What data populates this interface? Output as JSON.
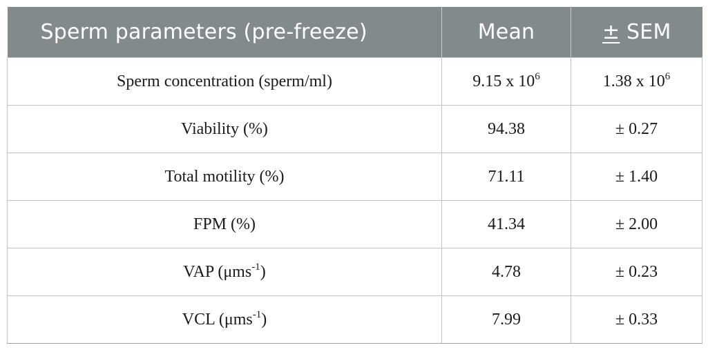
{
  "table": {
    "headers": [
      {
        "text": "Sperm parameters (pre-freeze)"
      },
      {
        "text": "Mean"
      },
      {
        "prefix": "±",
        "text": " SEM"
      }
    ],
    "rows": [
      {
        "param": {
          "text": "Sperm concentration (sperm/ml)",
          "sup": "",
          "suffix": ""
        },
        "mean": {
          "text": "9.15 x 10",
          "sup": "6"
        },
        "sem": {
          "text": "1.38 x 10",
          "sup": "6"
        }
      },
      {
        "param": {
          "text": "Viability (%)",
          "sup": "",
          "suffix": ""
        },
        "mean": {
          "text": "94.38",
          "sup": ""
        },
        "sem": {
          "text": "± 0.27",
          "sup": ""
        }
      },
      {
        "param": {
          "text": "Total motility (%)",
          "sup": "",
          "suffix": ""
        },
        "mean": {
          "text": "71.11",
          "sup": ""
        },
        "sem": {
          "text": "± 1.40",
          "sup": ""
        }
      },
      {
        "param": {
          "text": "FPM (%)",
          "sup": "",
          "suffix": ""
        },
        "mean": {
          "text": "41.34",
          "sup": ""
        },
        "sem": {
          "text": "± 2.00",
          "sup": ""
        }
      },
      {
        "param": {
          "text": "VAP (μms",
          "sup": "-1",
          "suffix": ")"
        },
        "mean": {
          "text": "4.78",
          "sup": ""
        },
        "sem": {
          "text": "± 0.23",
          "sup": ""
        }
      },
      {
        "param": {
          "text": "VCL (μms",
          "sup": "-1",
          "suffix": ")"
        },
        "mean": {
          "text": "7.99",
          "sup": ""
        },
        "sem": {
          "text": "± 0.33",
          "sup": ""
        }
      }
    ]
  },
  "colors": {
    "header_bg": "#838a8c",
    "header_text": "#ffffff",
    "grid": "#bfc3c4"
  }
}
